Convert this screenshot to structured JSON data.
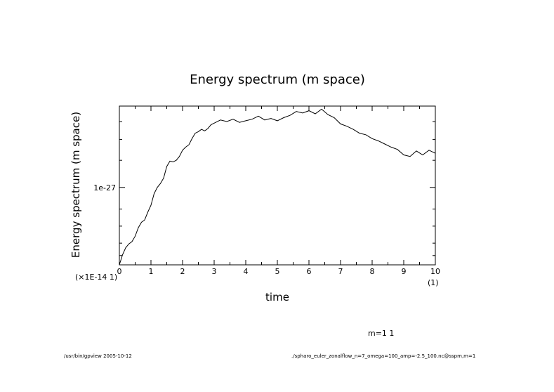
{
  "chart_data": {
    "type": "line",
    "title": "Energy spectrum (m space)",
    "xlabel": "time",
    "ylabel": "Energy spectrum (m space)",
    "x_scale_note": "(1)",
    "y_scale_note": "(×1E-14 1)",
    "annotation": "m=1 1",
    "xlim": [
      0,
      10
    ],
    "ylim": [
      0,
      2.05
    ],
    "x_ticks": [
      0,
      1,
      2,
      3,
      4,
      5,
      6,
      7,
      8,
      9,
      10
    ],
    "x_tick_labels": [
      "0",
      "1",
      "2",
      "3",
      "4",
      "5",
      "6",
      "7",
      "8",
      "9",
      "10"
    ],
    "y_ticks": [
      1.0
    ],
    "y_tick_labels": [
      "1e-27"
    ],
    "grid": false,
    "series": [
      {
        "x": [
          0.0,
          0.1,
          0.2,
          0.3,
          0.4,
          0.5,
          0.6,
          0.7,
          0.8,
          0.9,
          1.0,
          1.1,
          1.2,
          1.3,
          1.4,
          1.5,
          1.6,
          1.7,
          1.8,
          1.9,
          2.0,
          2.1,
          2.2,
          2.3,
          2.4,
          2.5,
          2.6,
          2.7,
          2.8,
          2.9,
          3.0,
          3.2,
          3.4,
          3.6,
          3.8,
          4.0,
          4.2,
          4.4,
          4.6,
          4.8,
          5.0,
          5.2,
          5.4,
          5.6,
          5.8,
          6.0,
          6.2,
          6.4,
          6.6,
          6.8,
          7.0,
          7.2,
          7.4,
          7.6,
          7.8,
          8.0,
          8.2,
          8.4,
          8.6,
          8.8,
          9.0,
          9.2,
          9.4,
          9.6,
          9.8,
          10.0
        ],
        "y": [
          0.0,
          0.13,
          0.22,
          0.27,
          0.3,
          0.37,
          0.48,
          0.55,
          0.58,
          0.68,
          0.77,
          0.92,
          1.0,
          1.05,
          1.12,
          1.27,
          1.34,
          1.33,
          1.35,
          1.4,
          1.48,
          1.52,
          1.55,
          1.63,
          1.7,
          1.72,
          1.75,
          1.73,
          1.76,
          1.81,
          1.83,
          1.87,
          1.85,
          1.88,
          1.84,
          1.86,
          1.88,
          1.92,
          1.87,
          1.89,
          1.86,
          1.9,
          1.93,
          1.98,
          1.96,
          1.99,
          1.95,
          2.01,
          1.94,
          1.9,
          1.82,
          1.79,
          1.75,
          1.7,
          1.68,
          1.63,
          1.6,
          1.56,
          1.52,
          1.49,
          1.42,
          1.4,
          1.47,
          1.42,
          1.48,
          1.44
        ]
      }
    ]
  },
  "footer": {
    "left": "/usr/bin/gpview  2005-10-12",
    "right": "./spharo_euler_zonalflow_n=7_omega=100_amp=-2.5_100.nc@sspm,m=1"
  }
}
